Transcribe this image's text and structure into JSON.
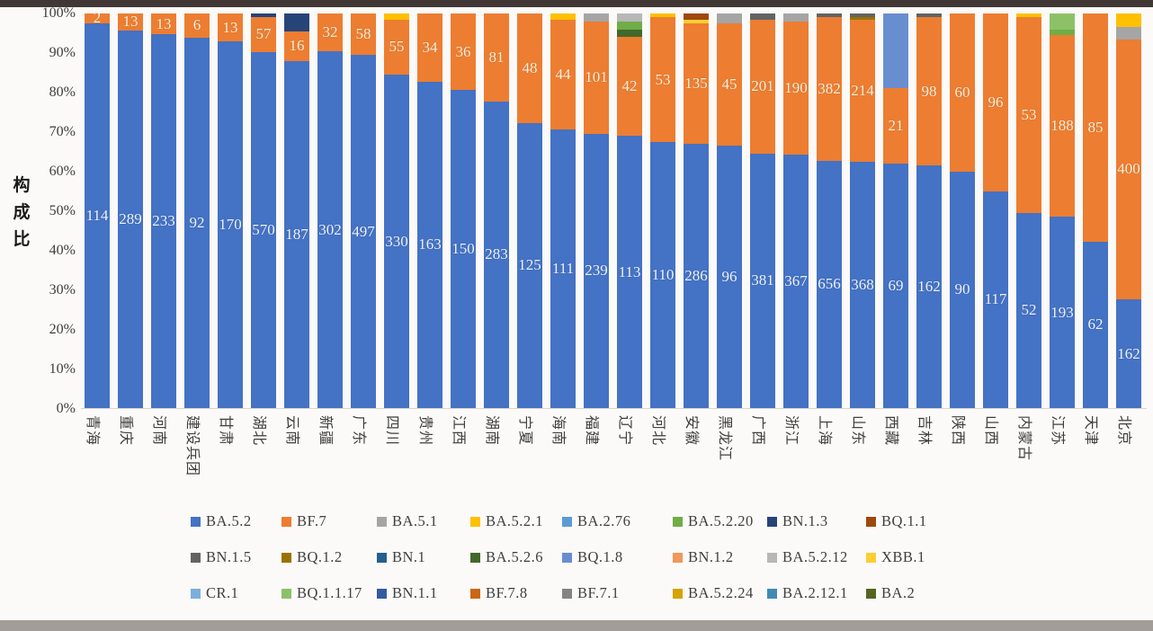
{
  "page": {
    "top_band_color": "#413734",
    "bottom_band_color": "#a39d99",
    "background": "#fbfaf8"
  },
  "chart_data": {
    "type": "bar",
    "variant": "stacked-percent-column",
    "title": "",
    "xlabel": "",
    "ylabel": "构成比",
    "ylim": [
      0,
      100
    ],
    "grid": false,
    "legend_position": "bottom",
    "y_ticks": [
      "100%",
      "90%",
      "80%",
      "70%",
      "60%",
      "50%",
      "40%",
      "30%",
      "20%",
      "10%",
      "0%"
    ],
    "legend": [
      {
        "name": "BA.5.2",
        "color": "#4472c4"
      },
      {
        "name": "BF.7",
        "color": "#ed7d31"
      },
      {
        "name": "BA.5.1",
        "color": "#a5a5a5"
      },
      {
        "name": "BA.5.2.1",
        "color": "#ffc000"
      },
      {
        "name": "BA.2.76",
        "color": "#5b9bd5"
      },
      {
        "name": "BA.5.2.20",
        "color": "#70ad47"
      },
      {
        "name": "BN.1.3",
        "color": "#264478"
      },
      {
        "name": "BQ.1.1",
        "color": "#9e480e"
      },
      {
        "name": "BN.1.5",
        "color": "#636363"
      },
      {
        "name": "BQ.1.2",
        "color": "#997300"
      },
      {
        "name": "BN.1",
        "color": "#255e91"
      },
      {
        "name": "BA.5.2.6",
        "color": "#43682b"
      },
      {
        "name": "BQ.1.8",
        "color": "#698ed0"
      },
      {
        "name": "BN.1.2",
        "color": "#f1975a"
      },
      {
        "name": "BA.5.2.12",
        "color": "#b7b7b7"
      },
      {
        "name": "XBB.1",
        "color": "#ffcd33"
      },
      {
        "name": "CR.1",
        "color": "#7cafdd"
      },
      {
        "name": "BQ.1.1.17",
        "color": "#8cc168"
      },
      {
        "name": "BN.1.1",
        "color": "#335aa1"
      },
      {
        "name": "BF.7.8",
        "color": "#cb6615"
      },
      {
        "name": "BF.7.1",
        "color": "#848484"
      },
      {
        "name": "BA.5.2.24",
        "color": "#d6a300"
      },
      {
        "name": "BA.2.12.1",
        "color": "#418ab3"
      },
      {
        "name": "BA.2",
        "color": "#56641f"
      }
    ],
    "categories": [
      "青海",
      "重庆",
      "河南",
      "建设兵团",
      "甘肃",
      "湖北",
      "云南",
      "新疆",
      "广东",
      "四川",
      "贵州",
      "江西",
      "湖南",
      "宁夏",
      "海南",
      "福建",
      "辽宁",
      "河北",
      "安徽",
      "黑龙江",
      "广西",
      "浙江",
      "上海",
      "山东",
      "西藏",
      "吉林",
      "陕西",
      "山西",
      "内蒙古",
      "江苏",
      "天津",
      "北京"
    ],
    "bars": [
      {
        "name": "青海",
        "segments": [
          {
            "v": "BA.5.2",
            "p": 97.5,
            "label": "114"
          },
          {
            "v": "BF.7",
            "p": 2.5,
            "label": "2"
          }
        ]
      },
      {
        "name": "重庆",
        "segments": [
          {
            "v": "BA.5.2",
            "p": 95.7,
            "label": "289"
          },
          {
            "v": "BF.7",
            "p": 4.3,
            "label": "13"
          }
        ]
      },
      {
        "name": "河南",
        "segments": [
          {
            "v": "BA.5.2",
            "p": 94.7,
            "label": "233"
          },
          {
            "v": "BF.7",
            "p": 5.3,
            "label": "13"
          }
        ]
      },
      {
        "name": "建设兵团",
        "segments": [
          {
            "v": "BA.5.2",
            "p": 93.9,
            "label": "92"
          },
          {
            "v": "BF.7",
            "p": 6.1,
            "label": "6"
          }
        ]
      },
      {
        "name": "甘肃",
        "segments": [
          {
            "v": "BA.5.2",
            "p": 92.9,
            "label": "170"
          },
          {
            "v": "BF.7",
            "p": 7.1,
            "label": "13"
          }
        ]
      },
      {
        "name": "湖北",
        "segments": [
          {
            "v": "BA.5.2",
            "p": 90.2,
            "label": "570"
          },
          {
            "v": "BF.7",
            "p": 9.0,
            "label": "57"
          },
          {
            "v": "BN.1.3",
            "p": 0.8,
            "label": ""
          }
        ]
      },
      {
        "name": "云南",
        "segments": [
          {
            "v": "BA.5.2",
            "p": 88.0,
            "label": "187"
          },
          {
            "v": "BF.7",
            "p": 7.5,
            "label": "16"
          },
          {
            "v": "BN.1.3",
            "p": 4.5,
            "label": ""
          }
        ]
      },
      {
        "name": "新疆",
        "segments": [
          {
            "v": "BA.5.2",
            "p": 90.4,
            "label": "302"
          },
          {
            "v": "BF.7",
            "p": 9.6,
            "label": "32"
          }
        ]
      },
      {
        "name": "广东",
        "segments": [
          {
            "v": "BA.5.2",
            "p": 89.5,
            "label": "497"
          },
          {
            "v": "BF.7",
            "p": 10.5,
            "label": "58"
          }
        ]
      },
      {
        "name": "四川",
        "segments": [
          {
            "v": "BA.5.2",
            "p": 84.5,
            "label": "330"
          },
          {
            "v": "BF.7",
            "p": 14.0,
            "label": "55"
          },
          {
            "v": "BA.5.2.1",
            "p": 1.5,
            "label": ""
          }
        ]
      },
      {
        "name": "贵州",
        "segments": [
          {
            "v": "BA.5.2",
            "p": 82.7,
            "label": "163"
          },
          {
            "v": "BF.7",
            "p": 17.3,
            "label": "34"
          }
        ]
      },
      {
        "name": "江西",
        "segments": [
          {
            "v": "BA.5.2",
            "p": 80.6,
            "label": "150"
          },
          {
            "v": "BF.7",
            "p": 19.4,
            "label": "36"
          }
        ]
      },
      {
        "name": "湖南",
        "segments": [
          {
            "v": "BA.5.2",
            "p": 77.7,
            "label": "283"
          },
          {
            "v": "BF.7",
            "p": 22.3,
            "label": "81"
          }
        ]
      },
      {
        "name": "宁夏",
        "segments": [
          {
            "v": "BA.5.2",
            "p": 72.3,
            "label": "125"
          },
          {
            "v": "BF.7",
            "p": 27.7,
            "label": "48"
          }
        ]
      },
      {
        "name": "海南",
        "segments": [
          {
            "v": "BA.5.2",
            "p": 70.5,
            "label": "111"
          },
          {
            "v": "BF.7",
            "p": 28.0,
            "label": "44"
          },
          {
            "v": "BA.5.2.1",
            "p": 1.5,
            "label": ""
          }
        ]
      },
      {
        "name": "福建",
        "segments": [
          {
            "v": "BA.5.2",
            "p": 69.5,
            "label": "239"
          },
          {
            "v": "BF.7",
            "p": 28.5,
            "label": "101"
          },
          {
            "v": "BA.5.1",
            "p": 2.0,
            "label": ""
          }
        ]
      },
      {
        "name": "辽宁",
        "segments": [
          {
            "v": "BA.5.2",
            "p": 69.0,
            "label": "113"
          },
          {
            "v": "BF.7",
            "p": 25.0,
            "label": "42"
          },
          {
            "v": "BA.5.2.6",
            "p": 2.0,
            "label": ""
          },
          {
            "v": "BA.5.2.20",
            "p": 2.0,
            "label": ""
          },
          {
            "v": "BA.5.2.12",
            "p": 2.0,
            "label": ""
          }
        ]
      },
      {
        "name": "河北",
        "segments": [
          {
            "v": "BA.5.2",
            "p": 67.5,
            "label": "110"
          },
          {
            "v": "BF.7",
            "p": 31.5,
            "label": "53"
          },
          {
            "v": "BA.5.2.1",
            "p": 1.0,
            "label": ""
          }
        ]
      },
      {
        "name": "安徽",
        "segments": [
          {
            "v": "BA.5.2",
            "p": 67.0,
            "label": "286"
          },
          {
            "v": "BF.7",
            "p": 30.5,
            "label": "135"
          },
          {
            "v": "XBB.1",
            "p": 1.0,
            "label": ""
          },
          {
            "v": "BQ.1.1",
            "p": 1.5,
            "label": ""
          }
        ]
      },
      {
        "name": "黑龙江",
        "segments": [
          {
            "v": "BA.5.2",
            "p": 66.4,
            "label": "96"
          },
          {
            "v": "BF.7",
            "p": 31.1,
            "label": "45"
          },
          {
            "v": "BA.5.1",
            "p": 2.5,
            "label": ""
          }
        ]
      },
      {
        "name": "广西",
        "segments": [
          {
            "v": "BA.5.2",
            "p": 64.5,
            "label": "381"
          },
          {
            "v": "BF.7",
            "p": 34.0,
            "label": "201"
          },
          {
            "v": "BN.1.5",
            "p": 1.5,
            "label": ""
          }
        ]
      },
      {
        "name": "浙江",
        "segments": [
          {
            "v": "BA.5.2",
            "p": 64.3,
            "label": "367"
          },
          {
            "v": "BF.7",
            "p": 33.7,
            "label": "190"
          },
          {
            "v": "BA.5.1",
            "p": 2.0,
            "label": ""
          }
        ]
      },
      {
        "name": "上海",
        "segments": [
          {
            "v": "BA.5.2",
            "p": 62.7,
            "label": "656"
          },
          {
            "v": "BF.7",
            "p": 36.3,
            "label": "382"
          },
          {
            "v": "BN.1.5",
            "p": 1.0,
            "label": ""
          }
        ]
      },
      {
        "name": "山东",
        "segments": [
          {
            "v": "BA.5.2",
            "p": 62.4,
            "label": "368"
          },
          {
            "v": "BF.7",
            "p": 36.0,
            "label": "214"
          },
          {
            "v": "BQ.1.2",
            "p": 0.8,
            "label": ""
          },
          {
            "v": "BN.1.5",
            "p": 0.8,
            "label": ""
          }
        ]
      },
      {
        "name": "西藏",
        "segments": [
          {
            "v": "BA.5.2",
            "p": 62.0,
            "label": "69"
          },
          {
            "v": "BF.7",
            "p": 19.0,
            "label": "21"
          },
          {
            "v": "BQ.1.8",
            "p": 19.0,
            "label": ""
          }
        ]
      },
      {
        "name": "吉林",
        "segments": [
          {
            "v": "BA.5.2",
            "p": 61.5,
            "label": "162"
          },
          {
            "v": "BF.7",
            "p": 37.5,
            "label": "98"
          },
          {
            "v": "BN.1.5",
            "p": 1.0,
            "label": ""
          }
        ]
      },
      {
        "name": "陕西",
        "segments": [
          {
            "v": "BA.5.2",
            "p": 60.0,
            "label": "90"
          },
          {
            "v": "BF.7",
            "p": 40.0,
            "label": "60"
          }
        ]
      },
      {
        "name": "山西",
        "segments": [
          {
            "v": "BA.5.2",
            "p": 54.9,
            "label": "117"
          },
          {
            "v": "BF.7",
            "p": 45.1,
            "label": "96"
          }
        ]
      },
      {
        "name": "内蒙古",
        "segments": [
          {
            "v": "BA.5.2",
            "p": 49.5,
            "label": "52"
          },
          {
            "v": "BF.7",
            "p": 49.5,
            "label": "53"
          },
          {
            "v": "BA.5.2.1",
            "p": 1.0,
            "label": ""
          }
        ]
      },
      {
        "name": "江苏",
        "segments": [
          {
            "v": "BA.5.2",
            "p": 48.5,
            "label": "193"
          },
          {
            "v": "BF.7",
            "p": 46.0,
            "label": "188"
          },
          {
            "v": "BA.5.2.20",
            "p": 1.5,
            "label": ""
          },
          {
            "v": "BQ.1.1.17",
            "p": 4.0,
            "label": ""
          }
        ]
      },
      {
        "name": "天津",
        "segments": [
          {
            "v": "BA.5.2",
            "p": 42.2,
            "label": "62"
          },
          {
            "v": "BF.7",
            "p": 57.8,
            "label": "85"
          }
        ]
      },
      {
        "name": "北京",
        "segments": [
          {
            "v": "BA.5.2",
            "p": 27.5,
            "label": "162"
          },
          {
            "v": "BF.7",
            "p": 66.0,
            "label": "400"
          },
          {
            "v": "BA.5.1",
            "p": 3.0,
            "label": ""
          },
          {
            "v": "BA.5.2.1",
            "p": 3.5,
            "label": ""
          }
        ]
      }
    ]
  }
}
